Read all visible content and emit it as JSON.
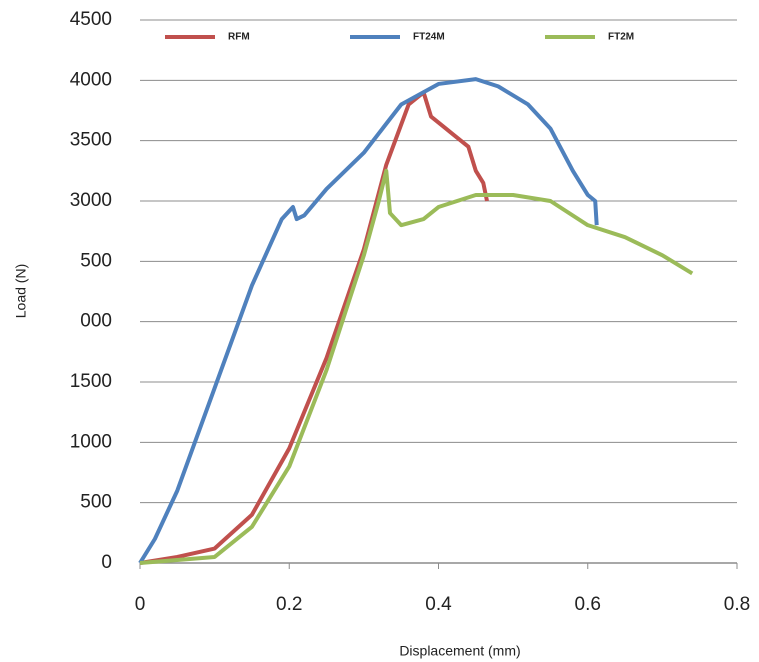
{
  "chart_data": {
    "type": "line",
    "xlabel": "Displacement (mm)",
    "ylabel": "Load (N)",
    "xlim": [
      0,
      0.8
    ],
    "xticks": [
      0,
      0.2,
      0.4,
      0.6,
      0.8
    ],
    "ylim": [
      0,
      4500
    ],
    "yticks": [
      0,
      500,
      1000,
      1500,
      {
        "value": 2000,
        "label": "000"
      },
      {
        "value": 2500,
        "label": "500"
      },
      3000,
      3500,
      4000,
      4500
    ],
    "grid": true,
    "series": [
      {
        "name": "RFM",
        "color": "#c0504d",
        "x": [
          0,
          0.05,
          0.1,
          0.15,
          0.2,
          0.25,
          0.3,
          0.33,
          0.36,
          0.38,
          0.39,
          0.42,
          0.44,
          0.45,
          0.46,
          0.465
        ],
        "values": [
          0,
          50,
          120,
          400,
          950,
          1700,
          2600,
          3300,
          3800,
          3900,
          3700,
          3550,
          3450,
          3250,
          3150,
          3000
        ]
      },
      {
        "name": "FT24M",
        "color": "#4f81bd",
        "x": [
          0,
          0.02,
          0.05,
          0.1,
          0.15,
          0.19,
          0.205,
          0.21,
          0.22,
          0.25,
          0.3,
          0.35,
          0.4,
          0.45,
          0.48,
          0.52,
          0.55,
          0.58,
          0.6,
          0.61,
          0.612
        ],
        "values": [
          0,
          200,
          600,
          1450,
          2300,
          2850,
          2950,
          2850,
          2880,
          3100,
          3400,
          3800,
          3970,
          4010,
          3950,
          3800,
          3600,
          3250,
          3050,
          3000,
          2800
        ]
      },
      {
        "name": "FT2M",
        "color": "#9bbb59",
        "x": [
          0,
          0.1,
          0.15,
          0.2,
          0.25,
          0.3,
          0.32,
          0.33,
          0.335,
          0.35,
          0.38,
          0.4,
          0.45,
          0.5,
          0.55,
          0.6,
          0.65,
          0.7,
          0.74
        ],
        "values": [
          0,
          50,
          300,
          800,
          1600,
          2550,
          3000,
          3250,
          2900,
          2800,
          2850,
          2950,
          3050,
          3050,
          3000,
          2800,
          2700,
          2550,
          2400
        ]
      }
    ]
  }
}
